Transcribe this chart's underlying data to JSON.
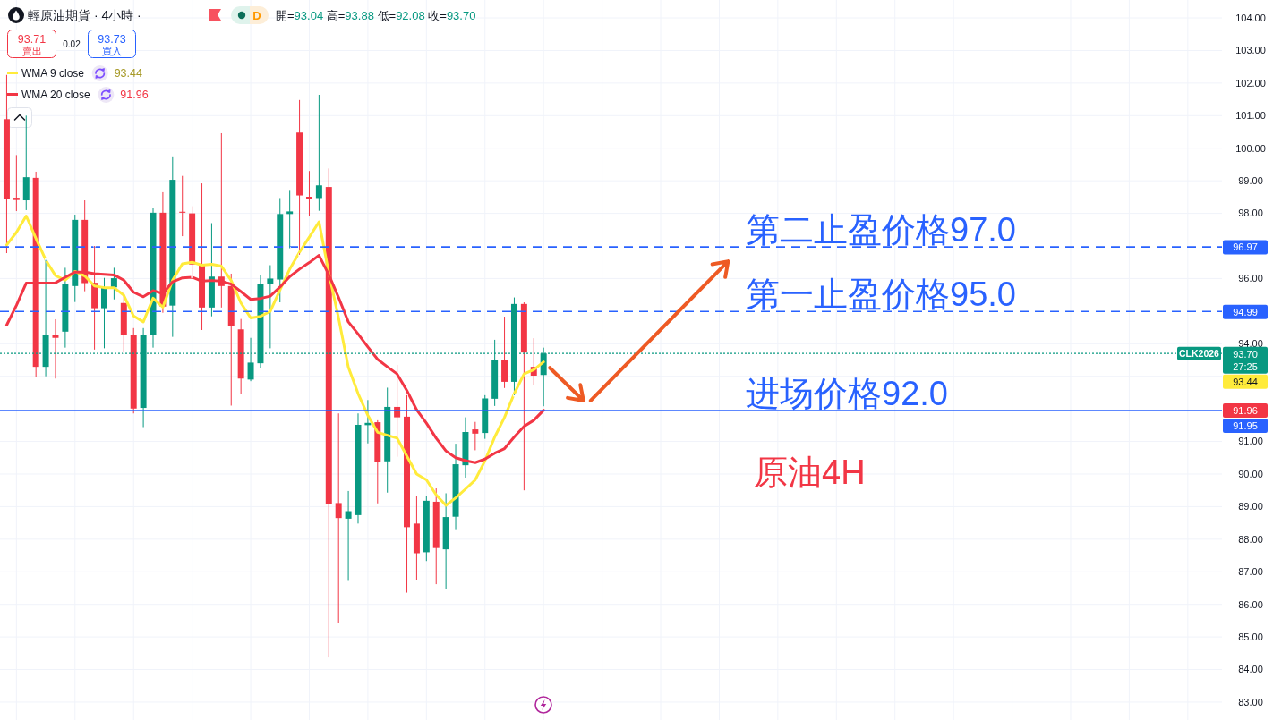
{
  "chart_data": {
    "type": "candlestick",
    "title": "輕原油期貨 · 4小時 ·",
    "subtitle": "開=93.04 高=93.88 低=92.08 收=93.70",
    "categories": [
      null,
      null,
      null,
      null,
      null,
      null,
      null,
      null,
      null,
      null,
      null,
      null,
      null,
      null,
      null,
      null,
      null,
      null,
      null,
      null,
      null,
      null,
      null,
      null,
      null,
      null,
      null,
      null,
      null,
      null,
      null,
      null,
      null,
      null,
      null,
      null,
      null,
      null,
      null,
      null,
      null,
      null,
      null,
      null,
      null,
      null,
      null,
      null,
      null,
      null,
      null,
      null,
      null,
      null,
      null,
      null,
      null,
      null,
      null,
      null,
      null,
      null,
      null,
      null,
      null,
      null,
      null,
      null,
      null,
      null,
      null,
      null,
      null,
      null,
      null,
      null,
      null,
      null,
      null,
      null,
      null,
      null,
      null,
      null,
      null,
      null,
      null,
      null,
      null,
      null,
      null,
      null,
      null,
      null,
      null,
      null,
      null,
      null,
      null,
      null,
      null,
      null,
      null,
      null,
      null,
      null,
      null,
      null,
      null,
      null,
      null,
      null,
      null,
      null,
      null,
      null,
      null,
      null,
      null,
      null,
      null,
      null,
      null,
      null,
      null
    ],
    "ohlc": [
      [
        100.89,
        102.25,
        96.78,
        98.44
      ],
      [
        98.48,
        99.79,
        98.07,
        98.41
      ],
      [
        98.4,
        101.0,
        98.1,
        99.11
      ],
      [
        99.09,
        99.28,
        92.97,
        93.29
      ],
      [
        93.29,
        96.57,
        93.0,
        94.28
      ],
      [
        94.28,
        94.75,
        92.93,
        94.18
      ],
      [
        94.37,
        96.33,
        93.88,
        95.82
      ],
      [
        95.77,
        97.96,
        95.28,
        97.8
      ],
      [
        97.8,
        98.4,
        95.61,
        95.86
      ],
      [
        95.87,
        97.0,
        93.82,
        95.09
      ],
      [
        95.09,
        96.02,
        93.86,
        95.73
      ],
      [
        95.73,
        96.33,
        95.36,
        96.01
      ],
      [
        95.25,
        95.6,
        93.73,
        94.26
      ],
      [
        94.26,
        94.48,
        91.86,
        92.01
      ],
      [
        92.03,
        94.48,
        91.44,
        94.28
      ],
      [
        94.26,
        98.18,
        93.88,
        98.02
      ],
      [
        98.02,
        98.65,
        94.95,
        95.14
      ],
      [
        95.17,
        99.75,
        94.21,
        99.03
      ],
      [
        98.05,
        99.15,
        97.3,
        98.02
      ],
      [
        98.0,
        98.22,
        96.06,
        96.43
      ],
      [
        96.43,
        98.92,
        94.42,
        95.11
      ],
      [
        95.11,
        97.7,
        94.84,
        96.06
      ],
      [
        96.06,
        100.46,
        95.11,
        95.77
      ],
      [
        95.77,
        96.15,
        92.1,
        94.55
      ],
      [
        94.44,
        94.76,
        92.47,
        92.93
      ],
      [
        92.9,
        94.18,
        92.85,
        93.42
      ],
      [
        93.4,
        96.12,
        93.26,
        95.83
      ],
      [
        95.83,
        96.41,
        93.86,
        96.0
      ],
      [
        95.97,
        98.47,
        95.27,
        97.98
      ],
      [
        97.98,
        98.72,
        96.93,
        98.06
      ],
      [
        100.48,
        101.48,
        96.73,
        98.55
      ],
      [
        98.51,
        99.3,
        97.93,
        98.43
      ],
      [
        98.47,
        101.64,
        98.08,
        98.86
      ],
      [
        98.81,
        99.38,
        84.37,
        89.09
      ],
      [
        89.11,
        91.86,
        85.43,
        88.65
      ],
      [
        88.63,
        89.48,
        86.72,
        88.86
      ],
      [
        88.74,
        91.86,
        88.48,
        91.51
      ],
      [
        91.5,
        92.27,
        90.94,
        91.57
      ],
      [
        91.59,
        91.65,
        89.1,
        90.37
      ],
      [
        90.39,
        92.65,
        89.43,
        92.06
      ],
      [
        92.06,
        93.35,
        90.53,
        91.74
      ],
      [
        91.76,
        92.42,
        86.36,
        88.37
      ],
      [
        88.48,
        89.34,
        86.74,
        87.57
      ],
      [
        87.6,
        89.34,
        87.33,
        89.18
      ],
      [
        89.15,
        89.56,
        86.62,
        87.73
      ],
      [
        87.69,
        89.41,
        86.48,
        88.68
      ],
      [
        88.69,
        90.93,
        88.28,
        90.3
      ],
      [
        90.27,
        91.74,
        89.89,
        91.29
      ],
      [
        91.37,
        91.6,
        90.73,
        91.24
      ],
      [
        91.26,
        92.42,
        91.08,
        92.32
      ],
      [
        92.31,
        94.12,
        92.09,
        93.49
      ],
      [
        93.49,
        94.83,
        92.64,
        92.83
      ],
      [
        92.83,
        95.42,
        92.42,
        95.22
      ],
      [
        95.22,
        95.27,
        89.5,
        93.73
      ],
      [
        93.29,
        94.17,
        92.73,
        93.02
      ],
      [
        93.04,
        93.88,
        92.08,
        93.7
      ],
      null,
      null,
      null,
      null,
      null,
      null,
      null,
      null,
      null,
      null,
      null,
      null,
      null,
      null,
      null,
      null,
      null,
      null,
      null,
      null,
      null,
      null,
      null,
      null,
      null,
      null,
      null,
      null,
      null,
      null,
      null,
      null,
      null,
      null,
      null,
      null,
      null,
      null,
      null,
      null,
      null,
      null,
      null,
      null,
      null,
      null,
      null,
      null,
      null,
      null,
      null,
      null,
      null,
      null,
      null,
      null,
      null,
      null,
      null,
      null,
      null,
      null,
      null,
      null,
      null,
      null,
      null,
      null,
      null
    ],
    "series": [
      {
        "name": "WMA 9 close",
        "type": "line",
        "color": "#ffeb3b",
        "values": [
          97.03,
          97.42,
          97.92,
          97.23,
          96.57,
          96.09,
          95.95,
          96.22,
          96.08,
          95.77,
          95.72,
          95.72,
          95.49,
          94.85,
          94.67,
          95.4,
          95.12,
          95.95,
          96.45,
          96.5,
          96.41,
          96.44,
          96.38,
          95.94,
          95.25,
          94.79,
          94.84,
          94.99,
          95.65,
          96.29,
          96.81,
          97.27,
          97.74,
          96.17,
          94.79,
          93.28,
          92.47,
          91.8,
          91.28,
          91.19,
          91.1,
          90.55,
          90.0,
          89.82,
          89.36,
          89.04,
          89.27,
          89.54,
          89.82,
          90.41,
          91.14,
          91.74,
          92.47,
          93.07,
          93.2,
          93.44,
          null,
          null,
          null,
          null,
          null,
          null,
          null,
          null,
          null,
          null,
          null,
          null,
          null,
          null,
          null,
          null,
          null,
          null,
          null,
          null,
          null,
          null,
          null,
          null,
          null,
          null,
          null,
          null,
          null,
          null,
          null,
          null,
          null,
          null,
          null,
          null,
          null,
          null,
          null,
          null,
          null,
          null,
          null,
          null,
          null,
          null,
          null,
          null,
          null,
          null,
          null,
          null,
          null,
          null,
          null,
          null,
          null,
          null,
          null,
          null,
          null,
          null,
          null,
          null,
          null,
          null,
          null,
          null,
          null
        ]
      },
      {
        "name": "WMA 20 close",
        "type": "line",
        "color": "#f23645",
        "values": [
          94.57,
          95.18,
          95.86,
          95.86,
          95.86,
          95.87,
          96.04,
          96.2,
          96.2,
          96.15,
          96.13,
          96.11,
          95.95,
          95.58,
          95.44,
          95.63,
          95.54,
          95.9,
          96.02,
          96.04,
          95.92,
          95.94,
          95.92,
          95.83,
          95.6,
          95.36,
          95.39,
          95.46,
          95.74,
          96.06,
          96.29,
          96.49,
          96.71,
          96.12,
          95.42,
          94.67,
          94.3,
          93.9,
          93.52,
          93.29,
          93.07,
          92.56,
          91.97,
          91.56,
          91.1,
          90.71,
          90.5,
          90.41,
          90.35,
          90.46,
          90.64,
          90.78,
          91.14,
          91.46,
          91.65,
          91.96,
          null,
          null,
          null,
          null,
          null,
          null,
          null,
          null,
          null,
          null,
          null,
          null,
          null,
          null,
          null,
          null,
          null,
          null,
          null,
          null,
          null,
          null,
          null,
          null,
          null,
          null,
          null,
          null,
          null,
          null,
          null,
          null,
          null,
          null,
          null,
          null,
          null,
          null,
          null,
          null,
          null,
          null,
          null,
          null,
          null,
          null,
          null,
          null,
          null,
          null,
          null,
          null,
          null,
          null,
          null,
          null,
          null,
          null,
          null,
          null,
          null,
          null,
          null,
          null,
          null,
          null,
          null,
          null,
          null
        ]
      }
    ],
    "ylim": [
      82.45,
      104.55
    ],
    "yticks": [
      {
        "value": 83,
        "label": "83.00"
      },
      {
        "value": 84,
        "label": "84.00"
      },
      {
        "value": 85,
        "label": "85.00"
      },
      {
        "value": 86,
        "label": "86.00"
      },
      {
        "value": 87,
        "label": "87.00"
      },
      {
        "value": 88,
        "label": "88.00"
      },
      {
        "value": 89,
        "label": "89.00"
      },
      {
        "value": 90,
        "label": "90.00"
      },
      {
        "value": 91,
        "label": "91.00"
      },
      {
        "value": 93,
        "label": null
      },
      {
        "value": 94,
        "label": "94.00"
      },
      {
        "value": 96,
        "label": "96.00"
      },
      {
        "value": 98,
        "label": "98.00"
      },
      {
        "value": 99,
        "label": "99.00"
      },
      {
        "value": 100,
        "label": "100.00"
      },
      {
        "value": 101,
        "label": "101.00"
      },
      {
        "value": 102,
        "label": "102.00"
      },
      {
        "value": 103,
        "label": "103.00"
      },
      {
        "value": 104,
        "label": "104.00"
      }
    ],
    "grid": true,
    "legend": "top left",
    "tick_labels": "y",
    "ref_lines": [
      {
        "axis": "y",
        "value": 96.97,
        "label": "96.97",
        "color": "#2962ff",
        "line_style": "dashed"
      },
      {
        "axis": "y",
        "value": 94.99,
        "label": "94.99",
        "color": "#2962ff",
        "line_style": "dashed"
      },
      {
        "axis": "y",
        "value": 91.95,
        "label": "91.95",
        "color": "#2962ff",
        "line_style": "solid"
      },
      {
        "axis": "y",
        "value": 93.7,
        "label": "93.70",
        "color": "#089981",
        "line_style": "dotted"
      }
    ],
    "annotations": [
      "D",
      "93.71",
      "賣出",
      "0.02",
      "93.73",
      "買入",
      "第二止盈价格97.0",
      "第一止盈价格95.0",
      "进场价格92.0",
      "原油4H",
      "CLK2026",
      "27:25",
      "93.44",
      "91.96",
      "93.44",
      "91.96"
    ]
  }
}
